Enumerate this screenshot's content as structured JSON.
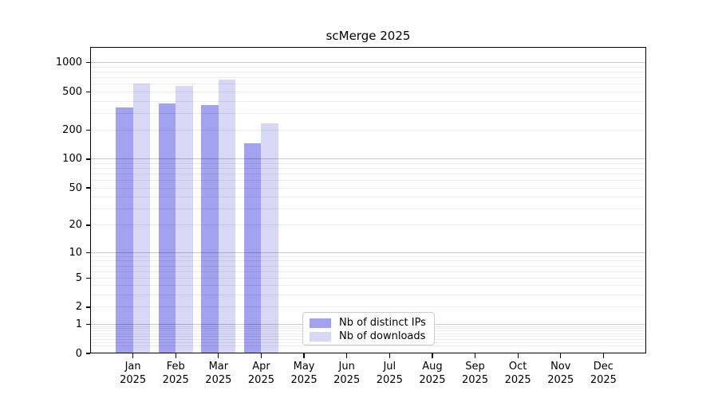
{
  "title": "scMerge 2025",
  "colors": {
    "ips_bar": "#a2a2f0",
    "downloads_bar": "#d8d8f6",
    "grid_major": "rgba(0,0,0,0.21)",
    "grid_minor": "rgba(0,0,0,0.07)",
    "axis": "#000000",
    "legend_border": "#cccccc",
    "background": "#ffffff"
  },
  "legend": {
    "items": [
      {
        "label": "Nb of distinct IPs"
      },
      {
        "label": "Nb of downloads"
      }
    ]
  },
  "chart_data": {
    "type": "bar",
    "title": "scMerge 2025",
    "categories": [
      "Jan",
      "Feb",
      "Mar",
      "Apr",
      "May",
      "Jun",
      "Jul",
      "Aug",
      "Sep",
      "Oct",
      "Nov",
      "Dec"
    ],
    "category_year": "2025",
    "series": [
      {
        "name": "Nb of distinct IPs",
        "color": "#a2a2f0",
        "values": [
          347,
          379,
          365,
          147,
          0,
          0,
          0,
          0,
          0,
          0,
          0,
          0
        ]
      },
      {
        "name": "Nb of downloads",
        "color": "#d8d8f6",
        "values": [
          607,
          577,
          671,
          237,
          0,
          0,
          0,
          0,
          0,
          0,
          0,
          0
        ]
      }
    ],
    "xlabel": "",
    "ylabel": "",
    "y_scale": "log1p",
    "y_ticks": [
      0,
      1,
      2,
      5,
      10,
      20,
      50,
      100,
      200,
      500,
      1000
    ],
    "y_grid_major": [
      1,
      10,
      100,
      1000
    ],
    "y_grid_minor": [
      0.2,
      0.3,
      0.4,
      0.5,
      0.6,
      0.7,
      0.8,
      0.9,
      2,
      3,
      4,
      5,
      6,
      7,
      8,
      9,
      20,
      30,
      40,
      50,
      60,
      70,
      80,
      90,
      200,
      300,
      400,
      500,
      600,
      700,
      800,
      900
    ],
    "y_top_value": 1450,
    "ylim": [
      0,
      1450
    ],
    "grid": true,
    "legend_position": "lower-center"
  }
}
